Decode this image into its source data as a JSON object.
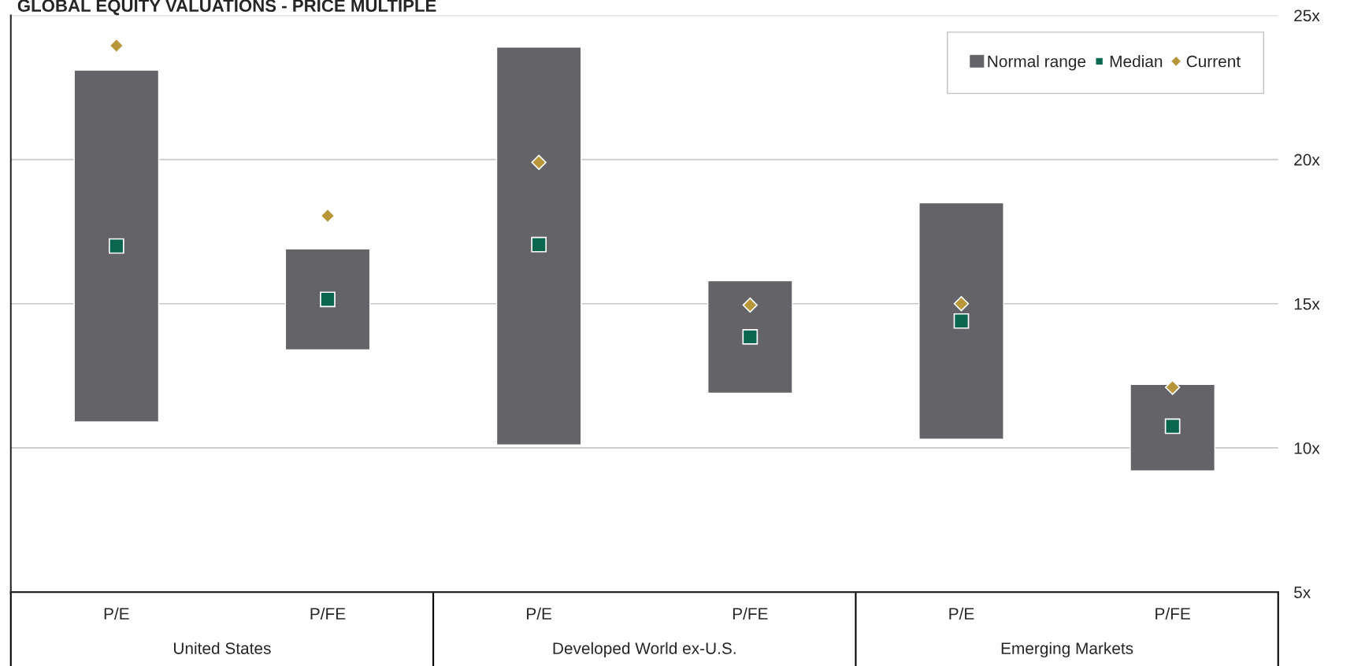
{
  "chart_data": {
    "type": "bar",
    "title": "GLOBAL EQUITY VALUATIONS - PRICE MULTIPLE",
    "categories": [
      "P/E",
      "P/FE",
      "P/E",
      "P/FE",
      "P/E",
      "P/FE"
    ],
    "annotations": [
      "United States",
      "Developed World ex-U.S.",
      "Emerging Markets"
    ],
    "series": [
      {
        "name": "Normal range",
        "color": "#646367",
        "base": [
          10.9,
          13.4,
          10.1,
          11.9,
          10.3,
          9.2
        ],
        "values": [
          12.2,
          3.5,
          13.8,
          3.9,
          8.2,
          3.0
        ]
      },
      {
        "name": "Median",
        "type": "scatter",
        "marker": "square",
        "color": "#0b6650",
        "values": [
          17.0,
          15.15,
          17.05,
          13.85,
          14.4,
          10.75
        ]
      },
      {
        "name": "Current",
        "type": "scatter",
        "marker": "diamond",
        "color": "#b8963a",
        "values": [
          23.95,
          18.05,
          19.9,
          14.95,
          15.0,
          12.1
        ]
      }
    ],
    "ylim": [
      5,
      25
    ],
    "yticks": [
      {
        "value": 5,
        "label": "5x"
      },
      {
        "value": 10,
        "label": "10x"
      },
      {
        "value": 15,
        "label": "15x"
      },
      {
        "value": 20,
        "label": "20x"
      },
      {
        "value": 25,
        "label": "25x"
      }
    ],
    "grid": "y",
    "legend": "top right"
  }
}
